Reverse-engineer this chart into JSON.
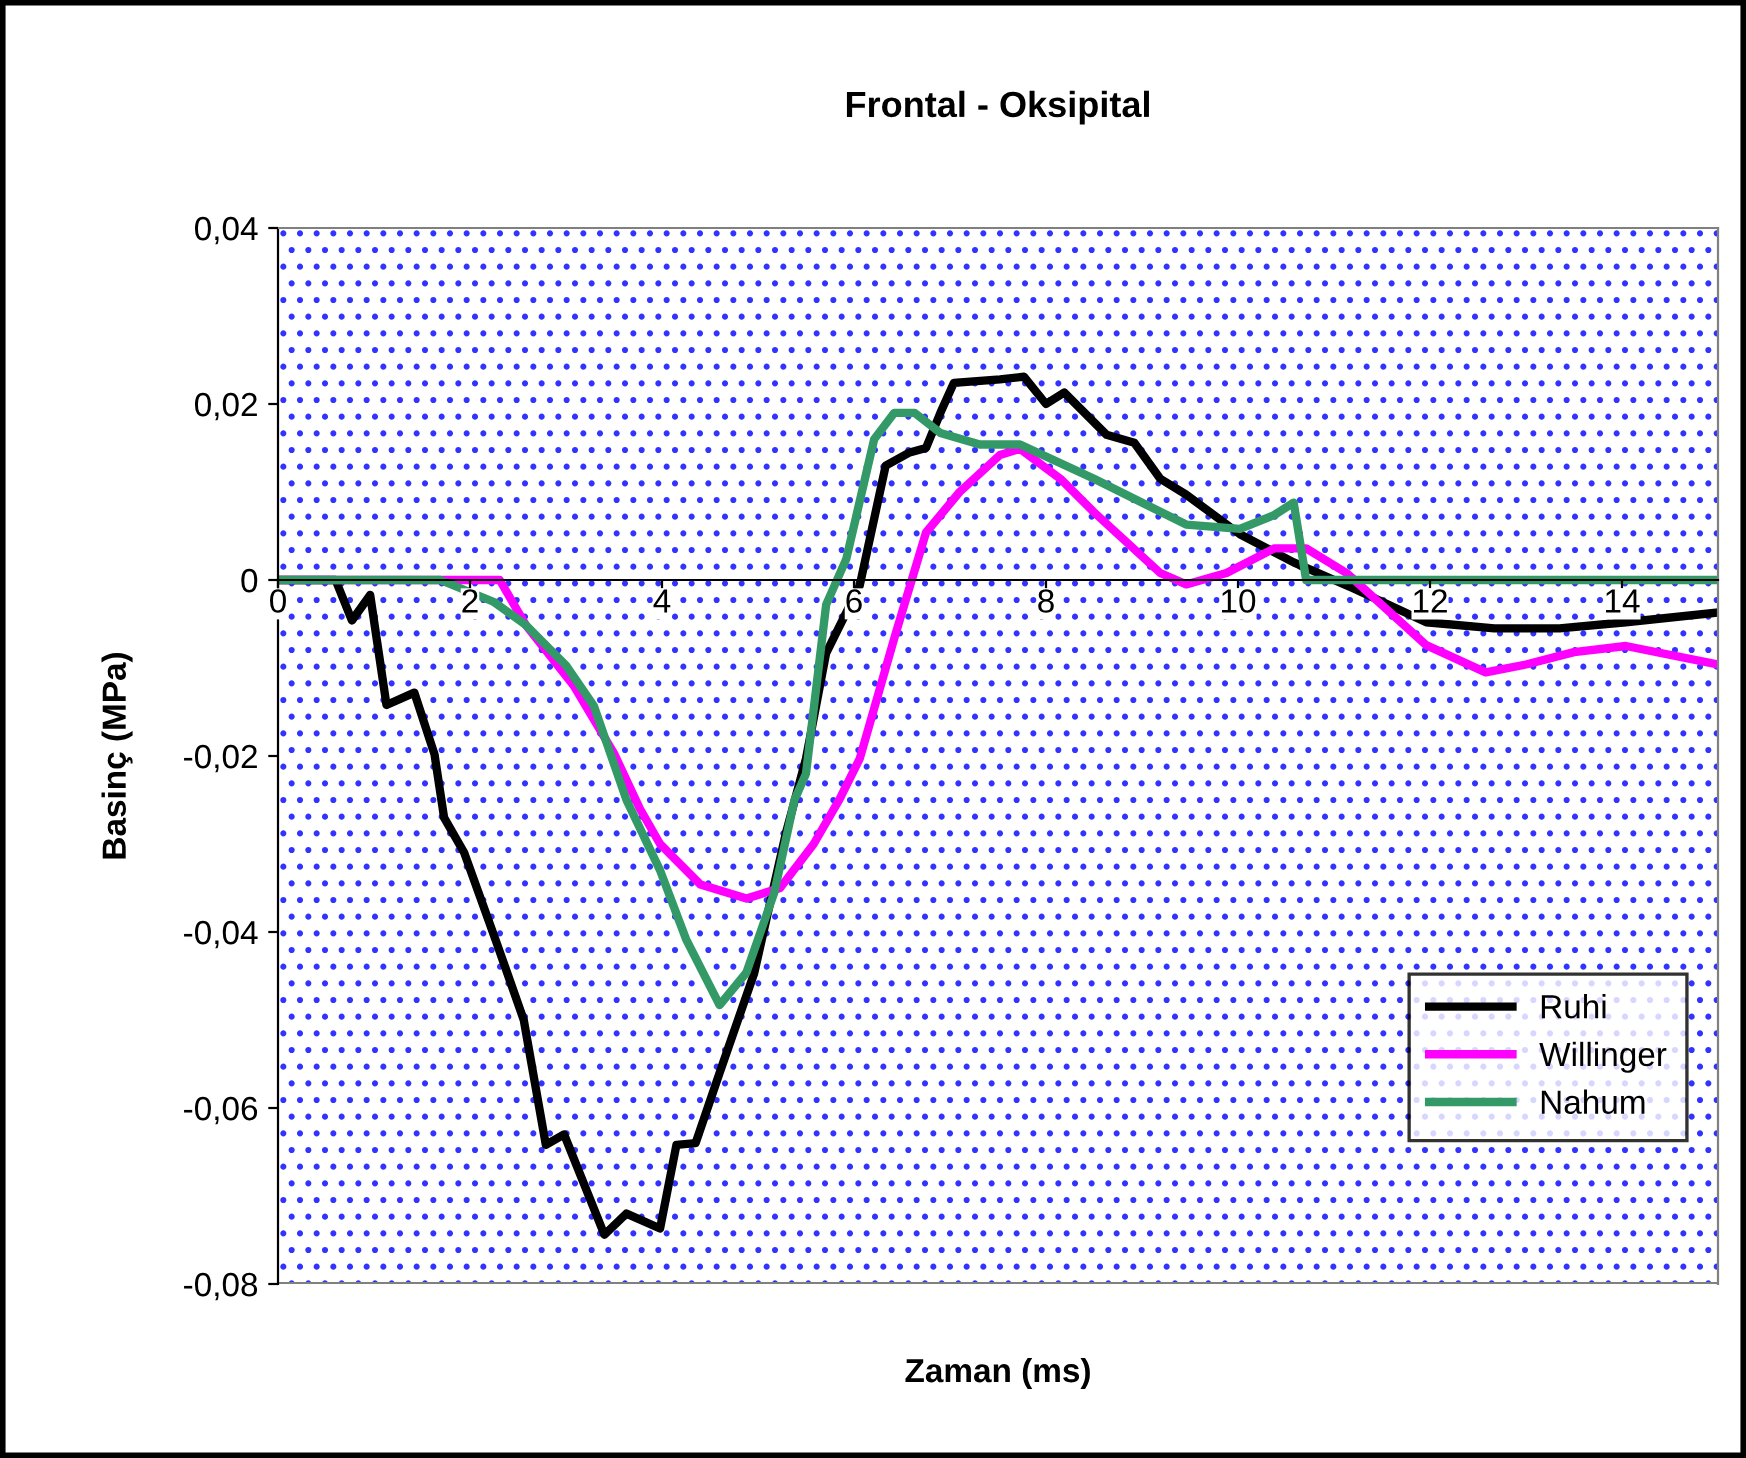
{
  "chart_data": {
    "type": "line",
    "title": "Frontal - Oksipital",
    "xlabel": "Zaman (ms)",
    "ylabel": "Basinç (MPa)",
    "xlim": [
      0,
      15
    ],
    "xticks": [
      0,
      2,
      4,
      6,
      8,
      10,
      12,
      14
    ],
    "ylim": [
      -0.08,
      0.04
    ],
    "yticks": [
      {
        "value": -0.08,
        "label": "-0,08"
      },
      {
        "value": -0.06,
        "label": "-0,06"
      },
      {
        "value": -0.04,
        "label": "-0,04"
      },
      {
        "value": -0.02,
        "label": "-0,02"
      },
      {
        "value": 0,
        "label": "0"
      },
      {
        "value": 0.02,
        "label": "0,02"
      },
      {
        "value": 0.04,
        "label": "0,04"
      }
    ],
    "grid": false,
    "legend": "bottom right",
    "marker": "none",
    "line_style": "solid",
    "series": [
      {
        "name": "Ruhi",
        "color": "#000000",
        "x": [
          0,
          0.6,
          0.77,
          0.96,
          1.13,
          1.42,
          1.63,
          1.73,
          1.94,
          2.27,
          2.56,
          2.79,
          2.98,
          3.4,
          3.63,
          3.98,
          4.15,
          4.35,
          4.6,
          4.96,
          5.29,
          5.5,
          5.71,
          6.06,
          6.33,
          6.58,
          6.75,
          6.9,
          7.04,
          7.52,
          7.77,
          8.0,
          8.19,
          8.63,
          8.92,
          9.19,
          9.46,
          10.02,
          10.58,
          11.21,
          11.96,
          12.67,
          13.35,
          14.04,
          15
        ],
        "values": [
          0,
          0,
          -0.0046,
          -0.0017,
          -0.0142,
          -0.0128,
          -0.0198,
          -0.027,
          -0.031,
          -0.041,
          -0.05,
          -0.0642,
          -0.063,
          -0.0744,
          -0.072,
          -0.0737,
          -0.0642,
          -0.064,
          -0.056,
          -0.0447,
          -0.0288,
          -0.0203,
          -0.0083,
          -0.0006,
          0.013,
          0.0145,
          0.015,
          0.019,
          0.0224,
          0.0228,
          0.0231,
          0.02,
          0.0213,
          0.0165,
          0.0156,
          0.0115,
          0.0097,
          0.0052,
          0.002,
          -0.001,
          -0.0048,
          -0.0055,
          -0.0055,
          -0.0048,
          -0.0037
        ]
      },
      {
        "name": "Willinger",
        "color": "#ff00ff",
        "x": [
          0,
          2.31,
          2.58,
          3.08,
          3.5,
          3.77,
          3.98,
          4.4,
          4.88,
          5.23,
          5.58,
          5.85,
          6.06,
          6.42,
          6.75,
          7.1,
          7.52,
          7.73,
          8.15,
          8.5,
          9.19,
          9.46,
          9.88,
          10.38,
          10.71,
          11.13,
          11.96,
          12.58,
          13.0,
          13.5,
          14.04,
          15
        ],
        "values": [
          0,
          0,
          -0.0051,
          -0.012,
          -0.0197,
          -0.026,
          -0.03,
          -0.0346,
          -0.0362,
          -0.035,
          -0.03,
          -0.0249,
          -0.0203,
          -0.0066,
          0.0054,
          0.01,
          0.0142,
          0.0149,
          0.0115,
          0.0077,
          0.0008,
          -0.0005,
          0.0008,
          0.0036,
          0.0036,
          0.0008,
          -0.0074,
          -0.0105,
          -0.0096,
          -0.0082,
          -0.0075,
          -0.0096
        ]
      },
      {
        "name": "Nahum",
        "color": "#339966",
        "x": [
          0,
          1.69,
          2.25,
          2.58,
          3.0,
          3.29,
          3.63,
          3.98,
          4.25,
          4.6,
          4.88,
          5.17,
          5.38,
          5.5,
          5.71,
          5.92,
          6.21,
          6.42,
          6.63,
          6.9,
          7.31,
          7.73,
          8.5,
          9.46,
          10.02,
          10.38,
          10.58,
          10.71,
          11.96,
          15
        ],
        "values": [
          0,
          0,
          -0.0025,
          -0.0051,
          -0.0097,
          -0.0143,
          -0.025,
          -0.033,
          -0.0408,
          -0.0483,
          -0.0446,
          -0.0355,
          -0.025,
          -0.022,
          -0.0028,
          0.0024,
          0.016,
          0.019,
          0.019,
          0.0167,
          0.0154,
          0.0154,
          0.0115,
          0.0063,
          0.0058,
          0.0074,
          0.0088,
          0,
          0,
          0
        ]
      }
    ]
  }
}
